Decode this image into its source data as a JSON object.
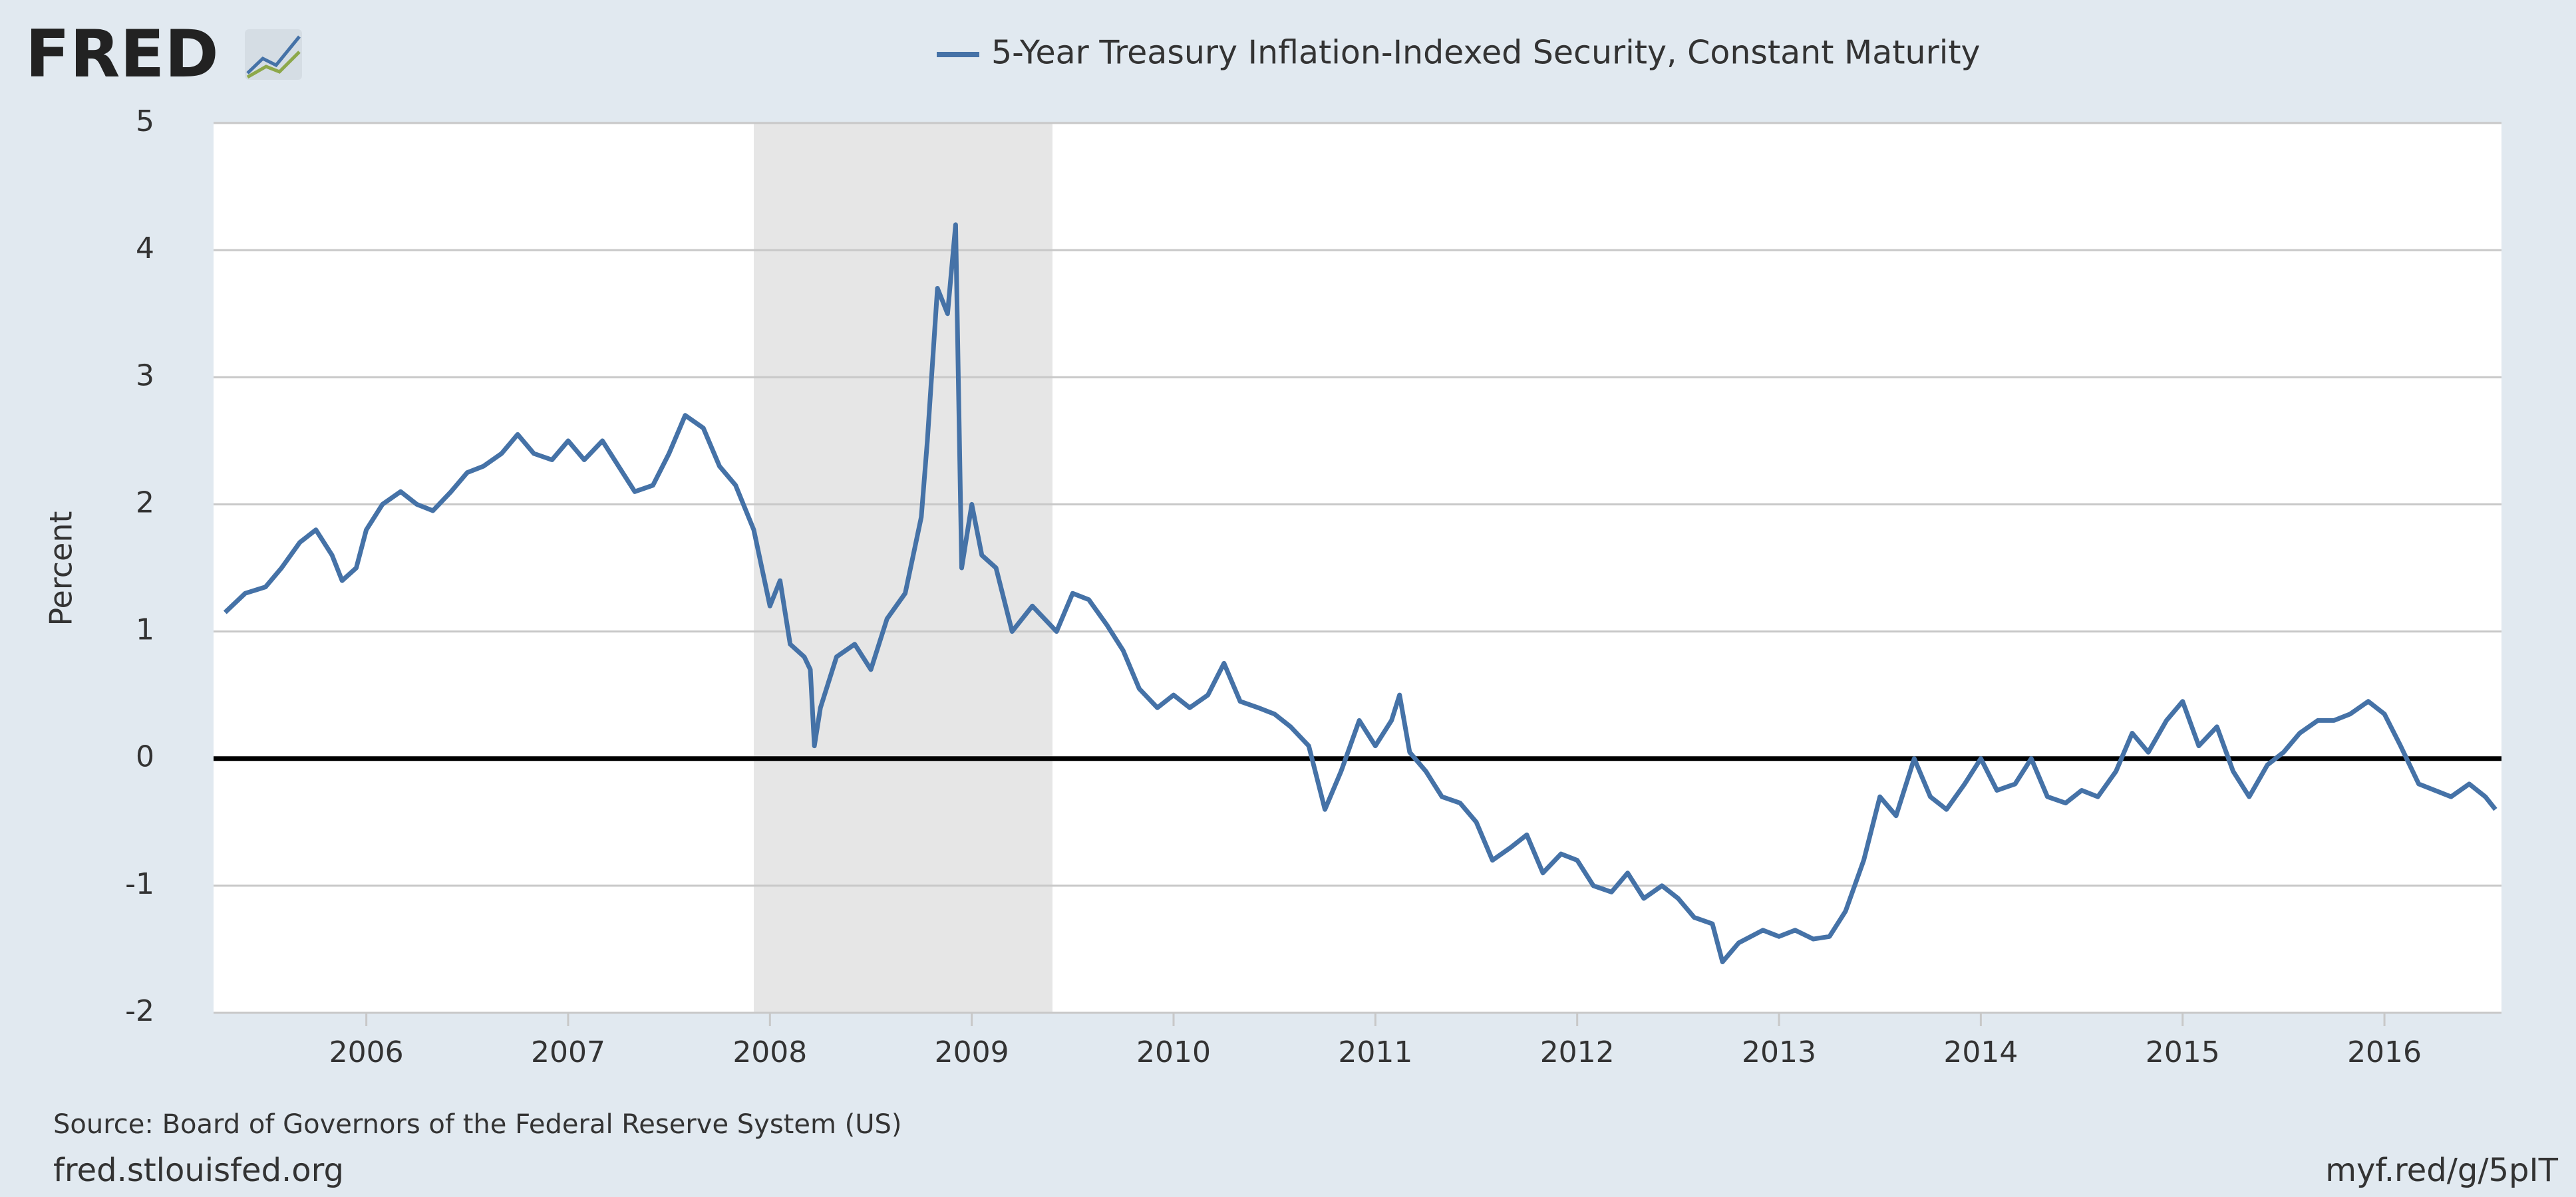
{
  "chart_data": {
    "type": "line",
    "logo": "FRED",
    "ylabel": "Percent",
    "source": "Source: Board of Governors of the Federal Reserve System (US)",
    "site": "fred.stlouisfed.org",
    "short_link": "myf.red/g/5pIT",
    "recession": [
      2007.92,
      2009.4
    ],
    "xlim": [
      2005.243,
      2016.58
    ],
    "xticks": [
      2006,
      2007,
      2008,
      2009,
      2010,
      2011,
      2012,
      2013,
      2014,
      2015,
      2016
    ],
    "ylim": [
      -2,
      5
    ],
    "yticks": [
      -2,
      -1,
      0,
      1,
      2,
      3,
      4,
      5
    ],
    "grid": true,
    "x": [
      2005.3,
      2005.4,
      2005.5,
      2005.58,
      2005.67,
      2005.75,
      2005.83,
      2005.88,
      2005.95,
      2006.0,
      2006.08,
      2006.17,
      2006.25,
      2006.33,
      2006.42,
      2006.5,
      2006.58,
      2006.67,
      2006.75,
      2006.83,
      2006.92,
      2007.0,
      2007.08,
      2007.17,
      2007.25,
      2007.33,
      2007.42,
      2007.5,
      2007.58,
      2007.67,
      2007.75,
      2007.83,
      2007.92,
      2008.0,
      2008.05,
      2008.1,
      2008.17,
      2008.2,
      2008.22,
      2008.25,
      2008.33,
      2008.42,
      2008.5,
      2008.58,
      2008.67,
      2008.75,
      2008.78,
      2008.83,
      2008.88,
      2008.92,
      2008.95,
      2009.0,
      2009.05,
      2009.12,
      2009.2,
      2009.3,
      2009.42,
      2009.5,
      2009.58,
      2009.67,
      2009.75,
      2009.83,
      2009.92,
      2010.0,
      2010.08,
      2010.17,
      2010.25,
      2010.33,
      2010.42,
      2010.5,
      2010.58,
      2010.67,
      2010.75,
      2010.83,
      2010.92,
      2011.0,
      2011.08,
      2011.12,
      2011.17,
      2011.25,
      2011.33,
      2011.42,
      2011.5,
      2011.58,
      2011.67,
      2011.75,
      2011.83,
      2011.92,
      2012.0,
      2012.08,
      2012.17,
      2012.25,
      2012.33,
      2012.42,
      2012.5,
      2012.58,
      2012.67,
      2012.72,
      2012.8,
      2012.92,
      2013.0,
      2013.08,
      2013.17,
      2013.25,
      2013.33,
      2013.42,
      2013.5,
      2013.58,
      2013.67,
      2013.75,
      2013.83,
      2013.92,
      2014.0,
      2014.08,
      2014.17,
      2014.25,
      2014.33,
      2014.42,
      2014.5,
      2014.58,
      2014.67,
      2014.75,
      2014.83,
      2014.92,
      2015.0,
      2015.08,
      2015.17,
      2015.25,
      2015.33,
      2015.42,
      2015.5,
      2015.58,
      2015.67,
      2015.75,
      2015.83,
      2015.92,
      2016.0,
      2016.08,
      2016.17,
      2016.25,
      2016.33,
      2016.42,
      2016.5,
      2016.55
    ],
    "series": [
      {
        "name": "5-Year Treasury Inflation-Indexed Security, Constant Maturity",
        "color": "#4572a7",
        "values": [
          1.15,
          1.3,
          1.35,
          1.5,
          1.7,
          1.8,
          1.6,
          1.4,
          1.5,
          1.8,
          2.0,
          2.1,
          2.0,
          1.95,
          2.1,
          2.25,
          2.3,
          2.4,
          2.55,
          2.4,
          2.35,
          2.5,
          2.35,
          2.5,
          2.3,
          2.1,
          2.15,
          2.4,
          2.7,
          2.6,
          2.3,
          2.15,
          1.8,
          1.2,
          1.4,
          0.9,
          0.8,
          0.7,
          0.1,
          0.4,
          0.8,
          0.9,
          0.7,
          1.1,
          1.3,
          1.9,
          2.5,
          3.7,
          3.5,
          4.2,
          1.5,
          2.0,
          1.6,
          1.5,
          1.0,
          1.2,
          1.0,
          1.3,
          1.25,
          1.05,
          0.85,
          0.55,
          0.4,
          0.5,
          0.4,
          0.5,
          0.75,
          0.45,
          0.4,
          0.35,
          0.25,
          0.1,
          -0.4,
          -0.1,
          0.3,
          0.1,
          0.3,
          0.5,
          0.05,
          -0.1,
          -0.3,
          -0.35,
          -0.5,
          -0.8,
          -0.7,
          -0.6,
          -0.9,
          -0.75,
          -0.8,
          -1.0,
          -1.05,
          -0.9,
          -1.1,
          -1.0,
          -1.1,
          -1.25,
          -1.3,
          -1.6,
          -1.45,
          -1.35,
          -1.4,
          -1.35,
          -1.42,
          -1.4,
          -1.2,
          -0.8,
          -0.3,
          -0.45,
          0.0,
          -0.3,
          -0.4,
          -0.2,
          0.0,
          -0.25,
          -0.2,
          0.0,
          -0.3,
          -0.35,
          -0.25,
          -0.3,
          -0.1,
          0.2,
          0.05,
          0.3,
          0.45,
          0.1,
          0.25,
          -0.1,
          -0.3,
          -0.05,
          0.05,
          0.2,
          0.3,
          0.3,
          0.35,
          0.45,
          0.35,
          0.1,
          -0.2,
          -0.25,
          -0.3,
          -0.2,
          -0.3,
          -0.4
        ]
      }
    ]
  }
}
